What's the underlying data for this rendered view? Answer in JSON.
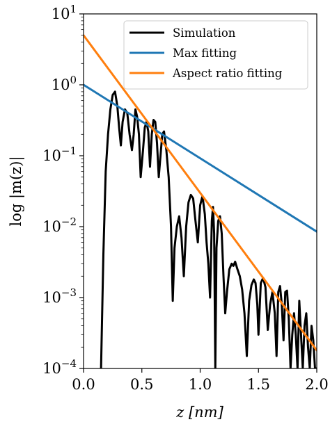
{
  "chart_data": {
    "type": "line",
    "xlabel": "z [nm]",
    "ylabel": "log |m(z)|",
    "xlim": [
      0.0,
      2.0
    ],
    "ylim": [
      0.0001,
      10
    ],
    "yscale": "log",
    "x_ticks": [
      "0.0",
      "0.5",
      "1.0",
      "1.5",
      "2.0"
    ],
    "x_tick_values": [
      0.0,
      0.5,
      1.0,
      1.5,
      2.0
    ],
    "y_tick_exponents": [
      "1",
      "0",
      "−1",
      "−2",
      "−3",
      "−4"
    ],
    "y_tick_values": [
      10,
      1,
      0.1,
      0.01,
      0.001,
      0.0001
    ],
    "y_tick_base": "10",
    "grid": false,
    "legend_position": "top-right",
    "series": [
      {
        "name": "Simulation",
        "color": "#000000",
        "kind": "oscillating",
        "x": [
          0.15,
          0.17,
          0.19,
          0.21,
          0.23,
          0.25,
          0.27,
          0.29,
          0.305,
          0.32,
          0.335,
          0.355,
          0.375,
          0.395,
          0.415,
          0.43,
          0.445,
          0.46,
          0.475,
          0.49,
          0.51,
          0.525,
          0.54,
          0.555,
          0.57,
          0.585,
          0.6,
          0.615,
          0.63,
          0.645,
          0.66,
          0.675,
          0.69,
          0.71,
          0.73,
          0.75,
          0.765,
          0.78,
          0.8,
          0.82,
          0.84,
          0.86,
          0.88,
          0.9,
          0.92,
          0.94,
          0.96,
          0.98,
          1.0,
          1.02,
          1.04,
          1.055,
          1.07,
          1.085,
          1.1,
          1.11,
          1.12,
          1.13,
          1.14,
          1.155,
          1.17,
          1.185,
          1.2,
          1.215,
          1.23,
          1.25,
          1.27,
          1.285,
          1.3,
          1.32,
          1.34,
          1.36,
          1.38,
          1.4,
          1.42,
          1.44,
          1.46,
          1.475,
          1.49,
          1.5,
          1.52,
          1.54,
          1.56,
          1.58,
          1.6,
          1.62,
          1.64,
          1.655,
          1.67,
          1.685,
          1.7,
          1.715,
          1.73,
          1.745,
          1.76,
          1.775,
          1.79,
          1.805,
          1.82,
          1.835,
          1.85,
          1.865,
          1.88,
          1.895,
          1.91,
          1.925,
          1.94,
          1.955,
          1.97,
          1.985,
          2.0
        ],
        "y": [
          0.0001,
          0.004,
          0.06,
          0.2,
          0.45,
          0.72,
          0.8,
          0.5,
          0.25,
          0.14,
          0.3,
          0.45,
          0.4,
          0.2,
          0.12,
          0.2,
          0.45,
          0.35,
          0.2,
          0.05,
          0.12,
          0.25,
          0.3,
          0.22,
          0.07,
          0.2,
          0.32,
          0.3,
          0.15,
          0.05,
          0.1,
          0.2,
          0.22,
          0.12,
          0.05,
          0.01,
          0.0009,
          0.005,
          0.01,
          0.014,
          0.007,
          0.002,
          0.01,
          0.022,
          0.028,
          0.025,
          0.012,
          0.006,
          0.02,
          0.027,
          0.015,
          0.006,
          0.003,
          0.001,
          0.012,
          0.019,
          0.008,
          0.0001,
          0.005,
          0.012,
          0.014,
          0.008,
          0.002,
          0.0006,
          0.0012,
          0.0025,
          0.003,
          0.0028,
          0.0032,
          0.0025,
          0.002,
          0.0013,
          0.0006,
          0.00015,
          0.0009,
          0.0015,
          0.0018,
          0.0016,
          0.0008,
          0.0003,
          0.0016,
          0.0019,
          0.0014,
          0.00035,
          0.0008,
          0.0012,
          0.0006,
          0.00015,
          0.0012,
          0.00145,
          0.0008,
          0.00025,
          0.0012,
          0.00125,
          0.0005,
          0.0001,
          0.0003,
          0.0006,
          0.0003,
          0.0001,
          0.0009,
          0.0003,
          0.0001,
          0.0004,
          0.0006,
          0.0002,
          0.0001,
          0.0004,
          0.00025,
          0.0001,
          0.0001
        ]
      },
      {
        "name": "Max fitting",
        "color": "#1f77b4",
        "x": [
          0.0,
          2.0
        ],
        "y": [
          1.0,
          0.0085
        ]
      },
      {
        "name": "Aspect ratio fitting",
        "color": "#ff7f0e",
        "x": [
          0.0,
          2.0
        ],
        "y": [
          5.0,
          0.00018
        ]
      }
    ]
  }
}
